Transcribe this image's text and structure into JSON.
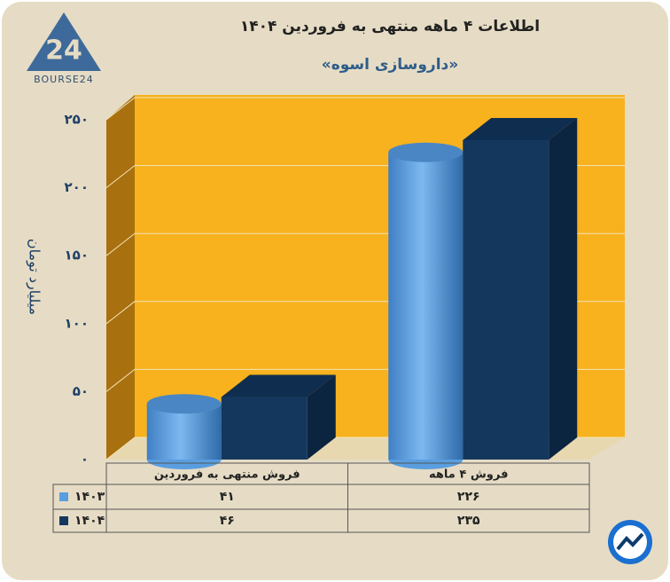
{
  "logo_text": "BOURSE24",
  "chart_data": {
    "type": "bar3d",
    "title": "اطلاعات ۴ ماهه منتهی به فروردین ۱۴۰۴",
    "subtitle": "«داروسازی اسوه»",
    "y_label": "میلیارد تومان",
    "categories": [
      "فروش منتهی به  فروردین",
      "فروش ۴  ماهه"
    ],
    "series": [
      {
        "name": "۱۴۰۳",
        "color": "#5a9ee0",
        "shape": "cylinder",
        "values": [
          41,
          226
        ],
        "value_labels": [
          "۴۱",
          "۲۲۶"
        ]
      },
      {
        "name": "۱۴۰۴",
        "color": "#14375e",
        "shape": "box",
        "values": [
          46,
          235
        ],
        "value_labels": [
          "۴۶",
          "۲۳۵"
        ]
      }
    ],
    "ylim": [
      0,
      250
    ],
    "yticks": [
      {
        "value": 0,
        "label": "۰"
      },
      {
        "value": 50,
        "label": "۵۰"
      },
      {
        "value": 100,
        "label": "۱۰۰"
      },
      {
        "value": 150,
        "label": "۱۵۰"
      },
      {
        "value": 200,
        "label": "۲۰۰"
      },
      {
        "value": 250,
        "label": "۲۵۰"
      }
    ],
    "grid": true
  }
}
